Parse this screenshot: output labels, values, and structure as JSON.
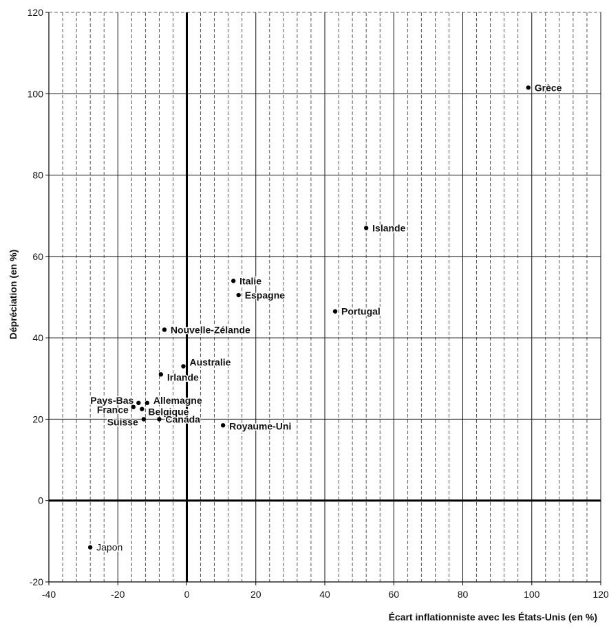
{
  "chart_data": {
    "type": "scatter",
    "xlabel": "Écart inflationniste avec les États-Unis (en %)",
    "ylabel": "Dépréciation (en %)",
    "xlim": [
      -40,
      120
    ],
    "ylim": [
      -20,
      120
    ],
    "x_major_ticks": [
      -40,
      -20,
      0,
      20,
      40,
      60,
      80,
      100,
      120
    ],
    "y_major_ticks": [
      -20,
      0,
      20,
      40,
      60,
      80,
      100,
      120
    ],
    "x_tick_labels": [
      "-40",
      "-20",
      "0",
      "20",
      "40",
      "60",
      "80",
      "100",
      "120"
    ],
    "y_tick_labels": [
      "-20",
      "0",
      "20",
      "40",
      "60",
      "80",
      "100",
      "120"
    ],
    "x_minor_step": 4,
    "grid": true,
    "points": [
      {
        "label": "Grèce",
        "x": 99,
        "y": 101.5
      },
      {
        "label": "Islande",
        "x": 52,
        "y": 67
      },
      {
        "label": "Italie",
        "x": 13.5,
        "y": 54
      },
      {
        "label": "Espagne",
        "x": 15,
        "y": 50.5
      },
      {
        "label": "Portugal",
        "x": 43,
        "y": 46.5
      },
      {
        "label": "Nouvelle-Zélande",
        "x": -6.5,
        "y": 42
      },
      {
        "label": "Australie",
        "x": -1,
        "y": 33
      },
      {
        "label": "Irlande",
        "x": -7.5,
        "y": 31
      },
      {
        "label": "Pays-Bas",
        "x": -14,
        "y": 24
      },
      {
        "label": "Allemagne",
        "x": -11.5,
        "y": 24
      },
      {
        "label": "France",
        "x": -15.5,
        "y": 23
      },
      {
        "label": "Belgique",
        "x": -13,
        "y": 22.5
      },
      {
        "label": "Suisse",
        "x": -12.5,
        "y": 20
      },
      {
        "label": "Canada",
        "x": -8,
        "y": 20
      },
      {
        "label": "Royaume-Uni",
        "x": 10.5,
        "y": 18.5
      },
      {
        "label": "Japon",
        "x": -28,
        "y": -11.5
      }
    ]
  }
}
